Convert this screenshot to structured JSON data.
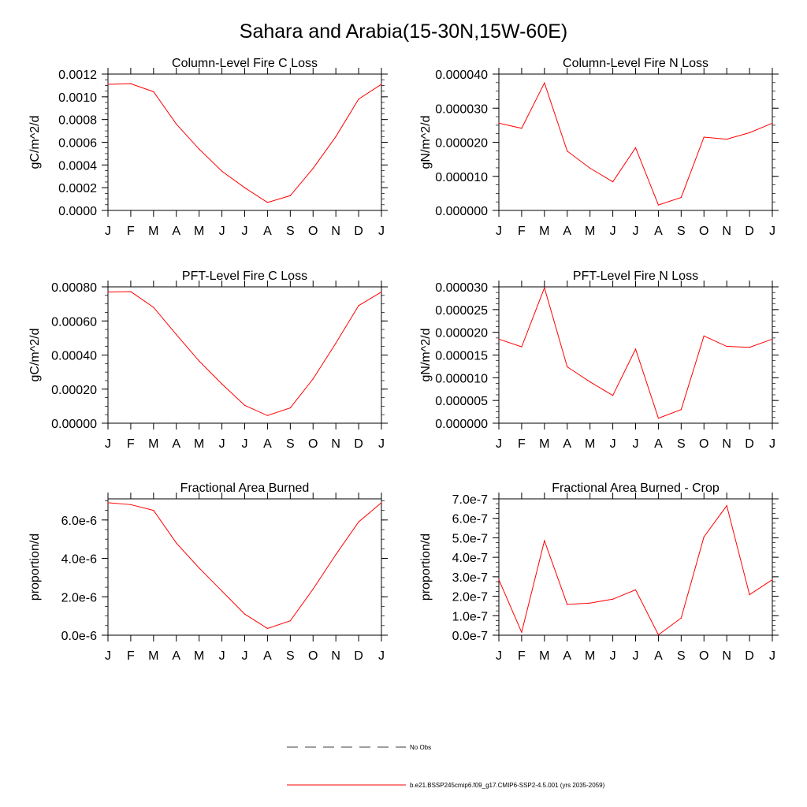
{
  "figure": {
    "title": "Sahara and Arabia(15-30N,15W-60E)",
    "line_color": "#ff0000",
    "obs_line_color": "#000000"
  },
  "legend": {
    "obs_label": "No Obs",
    "model_label": "b.e21.BSSP245cmip6.f09_g17.CMIP6-SSP2-4.5.001 (yrs 2035-2059)"
  },
  "chart_data": [
    {
      "type": "line",
      "title": "Column-Level Fire C Loss",
      "ylabel": "gC/m^2/d",
      "x": [
        "J",
        "F",
        "M",
        "A",
        "M",
        "J",
        "J",
        "A",
        "S",
        "O",
        "N",
        "D",
        "J"
      ],
      "ylim": [
        0,
        0.0012
      ],
      "yticks": [
        "0.0000",
        "0.0002",
        "0.0004",
        "0.0006",
        "0.0008",
        "0.0010",
        "0.0012"
      ],
      "series": [
        {
          "values": [
            0.00111,
            0.001115,
            0.001045,
            0.00076,
            0.00054,
            0.000345,
            0.0002,
            7e-05,
            0.00013,
            0.00037,
            0.00065,
            0.00098,
            0.00111
          ]
        }
      ]
    },
    {
      "type": "line",
      "title": "Column-Level Fire N Loss",
      "ylabel": "gN/m^2/d",
      "x": [
        "J",
        "F",
        "M",
        "A",
        "M",
        "J",
        "J",
        "A",
        "S",
        "O",
        "N",
        "D",
        "J"
      ],
      "ylim": [
        0,
        4e-05
      ],
      "yticks": [
        "0.000000",
        "0.000010",
        "0.000020",
        "0.000030",
        "0.000040"
      ],
      "series": [
        {
          "values": [
            2.56e-05,
            2.41e-05,
            3.74e-05,
            1.74e-05,
            1.24e-05,
            8.4e-06,
            1.84e-05,
            1.6e-06,
            3.8e-06,
            2.15e-05,
            2.09e-05,
            2.28e-05,
            2.56e-05
          ]
        }
      ]
    },
    {
      "type": "line",
      "title": "PFT-Level Fire C Loss",
      "ylabel": "gC/m^2/d",
      "x": [
        "J",
        "F",
        "M",
        "A",
        "M",
        "J",
        "J",
        "A",
        "S",
        "O",
        "N",
        "D",
        "J"
      ],
      "ylim": [
        0,
        0.0008
      ],
      "yticks": [
        "0.00000",
        "0.00020",
        "0.00040",
        "0.00060",
        "0.00080"
      ],
      "series": [
        {
          "values": [
            0.00077,
            0.000772,
            0.00068,
            0.00052,
            0.000365,
            0.00023,
            0.000105,
            4.5e-05,
            9e-05,
            0.00026,
            0.00047,
            0.00069,
            0.00077
          ]
        }
      ]
    },
    {
      "type": "line",
      "title": "PFT-Level Fire N Loss",
      "ylabel": "gN/m^2/d",
      "x": [
        "J",
        "F",
        "M",
        "A",
        "M",
        "J",
        "J",
        "A",
        "S",
        "O",
        "N",
        "D",
        "J"
      ],
      "ylim": [
        0,
        3e-05
      ],
      "yticks": [
        "0.000000",
        "0.000005",
        "0.000010",
        "0.000015",
        "0.000020",
        "0.000025",
        "0.000030"
      ],
      "series": [
        {
          "values": [
            1.85e-05,
            1.68e-05,
            2.98e-05,
            1.24e-05,
            9.1e-06,
            6.1e-06,
            1.63e-05,
            1.1e-06,
            3e-06,
            1.92e-05,
            1.69e-05,
            1.67e-05,
            1.85e-05
          ]
        }
      ]
    },
    {
      "type": "line",
      "title": "Fractional Area Burned",
      "ylabel": "proportion/d",
      "x": [
        "J",
        "F",
        "M",
        "A",
        "M",
        "J",
        "J",
        "A",
        "S",
        "O",
        "N",
        "D",
        "J"
      ],
      "ylim": [
        0,
        7.1e-06
      ],
      "yticks": [
        "0.0e-6",
        "2.0e-6",
        "4.0e-6",
        "6.0e-6"
      ],
      "ytick_values": [
        0,
        2e-06,
        4e-06,
        6e-06
      ],
      "series": [
        {
          "values": [
            6.9e-06,
            6.8e-06,
            6.5e-06,
            4.8e-06,
            3.5e-06,
            2.3e-06,
            1.1e-06,
            3.5e-07,
            7.5e-07,
            2.4e-06,
            4.2e-06,
            5.9e-06,
            6.9e-06
          ]
        }
      ]
    },
    {
      "type": "line",
      "title": "Fractional Area Burned - Crop",
      "ylabel": "proportion/d",
      "x": [
        "J",
        "F",
        "M",
        "A",
        "M",
        "J",
        "J",
        "A",
        "S",
        "O",
        "N",
        "D",
        "J"
      ],
      "ylim": [
        0,
        7e-07
      ],
      "yticks": [
        "0.0e-7",
        "1.0e-7",
        "2.0e-7",
        "3.0e-7",
        "4.0e-7",
        "5.0e-7",
        "6.0e-7",
        "7.0e-7"
      ],
      "series": [
        {
          "values": [
            2.85e-07,
            1.5e-08,
            4.85e-07,
            1.58e-07,
            1.65e-07,
            1.85e-07,
            2.33e-07,
            2e-09,
            8.8e-08,
            5.05e-07,
            6.65e-07,
            2.08e-07,
            2.85e-07
          ]
        }
      ]
    }
  ]
}
